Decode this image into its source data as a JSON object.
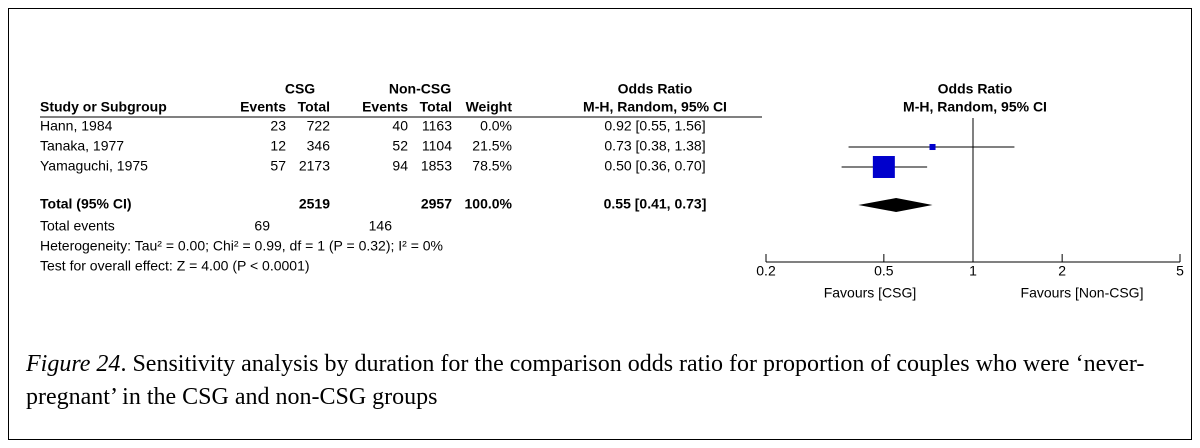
{
  "header": {
    "group1": "CSG",
    "group2": "Non-CSG",
    "or_title": "Odds Ratio",
    "or_subtitle": "M-H, Random, 95% CI",
    "plot_title": "Odds Ratio",
    "plot_subtitle": "M-H, Random, 95% CI",
    "columns": [
      "Study or Subgroup",
      "Events",
      "Total",
      "Events",
      "Total",
      "Weight"
    ]
  },
  "rows": [
    {
      "study": "Hann, 1984",
      "e1": "23",
      "t1": "722",
      "e2": "40",
      "t2": "1163",
      "weight": "0.0%",
      "ci": "0.92 [0.55, 1.56]"
    },
    {
      "study": "Tanaka, 1977",
      "e1": "12",
      "t1": "346",
      "e2": "52",
      "t2": "1104",
      "weight": "21.5%",
      "ci": "0.73 [0.38, 1.38]"
    },
    {
      "study": "Yamaguchi, 1975",
      "e1": "57",
      "t1": "2173",
      "e2": "94",
      "t2": "1853",
      "weight": "78.5%",
      "ci": "0.50 [0.36, 0.70]"
    }
  ],
  "total": {
    "label": "Total (95% CI)",
    "t1": "2519",
    "t2": "2957",
    "weight": "100.0%",
    "ci": "0.55 [0.41, 0.73]"
  },
  "events": {
    "label": "Total events",
    "e1": "69",
    "e2": "146"
  },
  "heterogeneity": "Heterogeneity: Tau² = 0.00; Chi² = 0.99, df = 1 (P = 0.32); I² = 0%",
  "overall": "Test for overall effect: Z = 4.00 (P < 0.0001)",
  "plot": {
    "log_scale": true,
    "xlim": [
      0.2,
      5
    ],
    "xticks": [
      0.2,
      0.5,
      1,
      2,
      5
    ],
    "color": "#0000cc",
    "favours_left": "Favours [CSG]",
    "favours_right": "Favours [Non-CSG]",
    "studies": [
      {
        "row": 1,
        "or": 0.73,
        "low": 0.38,
        "high": 1.38,
        "weight": 21.5
      },
      {
        "row": 2,
        "or": 0.5,
        "low": 0.36,
        "high": 0.7,
        "weight": 78.5
      }
    ],
    "total": {
      "or": 0.55,
      "low": 0.41,
      "high": 0.73
    }
  },
  "caption": {
    "label": "Figure 24",
    "text": ". Sensitivity analysis by duration for the comparison odds ratio for proportion of couples who were ‘never-pregnant’ in the CSG and non-CSG groups"
  }
}
